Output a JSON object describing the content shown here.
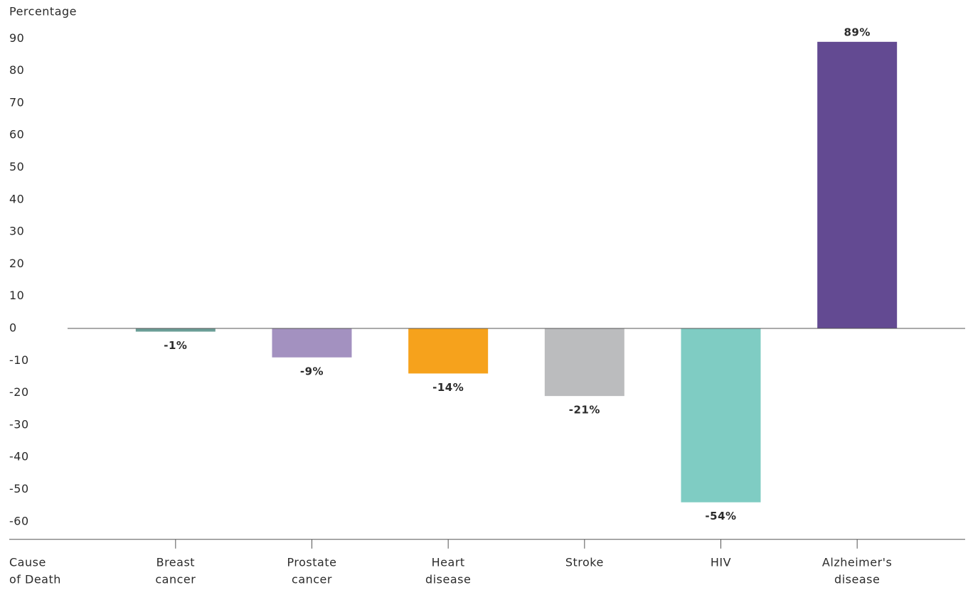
{
  "chart_data": {
    "type": "bar",
    "y_label": "Percentage",
    "x_label": [
      "Cause",
      "of Death"
    ],
    "categories": [
      [
        "Breast",
        "cancer"
      ],
      [
        "Prostate",
        "cancer"
      ],
      [
        "Heart",
        "disease"
      ],
      [
        "Stroke"
      ],
      [
        "HIV"
      ],
      [
        "Alzheimer's",
        "disease"
      ]
    ],
    "values": [
      -1,
      -9,
      -14,
      -21,
      -54,
      89
    ],
    "value_labels": [
      "-1%",
      "-9%",
      "-14%",
      "-21%",
      "-54%",
      "89%"
    ],
    "colors": [
      "#6b9e97",
      "#a391c0",
      "#f6a21c",
      "#bbbcbe",
      "#7fccc3",
      "#634a92"
    ],
    "ylim": [
      -65.5,
      95
    ],
    "yticks": [
      90,
      80,
      70,
      60,
      50,
      40,
      30,
      20,
      10,
      0,
      -10,
      -20,
      -30,
      -40,
      -50,
      -60
    ],
    "grid": false
  }
}
